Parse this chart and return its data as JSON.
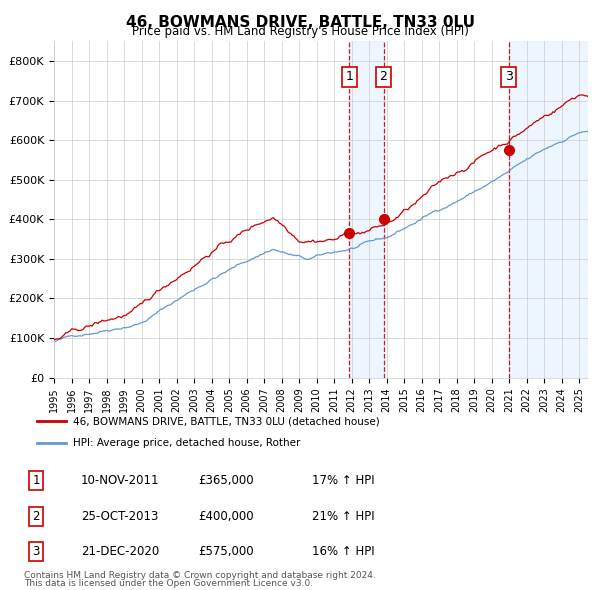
{
  "title": "46, BOWMANS DRIVE, BATTLE, TN33 0LU",
  "subtitle": "Price paid vs. HM Land Registry's House Price Index (HPI)",
  "legend_red": "46, BOWMANS DRIVE, BATTLE, TN33 0LU (detached house)",
  "legend_blue": "HPI: Average price, detached house, Rother",
  "footnote1": "Contains HM Land Registry data © Crown copyright and database right 2024.",
  "footnote2": "This data is licensed under the Open Government Licence v3.0.",
  "transactions": [
    {
      "label": "1",
      "date": "10-NOV-2011",
      "price": 365000,
      "hpi_pct": "17%",
      "x_year": 2011.87
    },
    {
      "label": "2",
      "date": "25-OCT-2013",
      "price": 400000,
      "hpi_pct": "21%",
      "x_year": 2013.82
    },
    {
      "label": "3",
      "date": "21-DEC-2020",
      "price": 575000,
      "hpi_pct": "16%",
      "x_year": 2020.97
    }
  ],
  "color_red": "#cc0000",
  "color_blue": "#6699cc",
  "color_shading": "#ddeeff",
  "ylim": [
    0,
    850000
  ],
  "xlim_start": 1995.0,
  "xlim_end": 2025.5,
  "background_color": "#ffffff",
  "grid_color": "#cccccc",
  "table_rows": [
    [
      "1",
      "10-NOV-2011",
      "£365,000",
      "17% ↑ HPI"
    ],
    [
      "2",
      "25-OCT-2013",
      "£400,000",
      "21% ↑ HPI"
    ],
    [
      "3",
      "21-DEC-2020",
      "£575,000",
      "16% ↑ HPI"
    ]
  ]
}
